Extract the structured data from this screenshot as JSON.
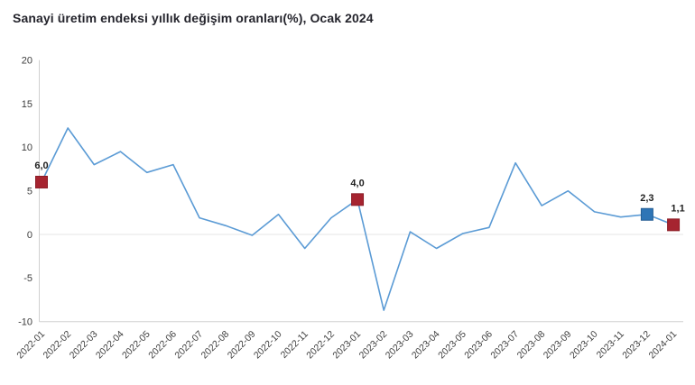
{
  "page": {
    "title": "Sanayi üretim endeksi yıllık değişim oranları(%), Ocak 2024"
  },
  "chart_data": {
    "type": "line",
    "title": "Sanayi üretim endeksi yıllık değişim oranları(%), Ocak 2024",
    "xlabel": "",
    "ylabel": "",
    "x": [
      "2022-01",
      "2022-02",
      "2022-03",
      "2022-04",
      "2022-05",
      "2022-06",
      "2022-07",
      "2022-08",
      "2022-09",
      "2022-10",
      "2022-11",
      "2022-12",
      "2023-01",
      "2023-02",
      "2023-03",
      "2023-04",
      "2023-05",
      "2023-06",
      "2023-07",
      "2023-08",
      "2023-09",
      "2023-10",
      "2023-11",
      "2023-12",
      "2024-01"
    ],
    "values": [
      6.0,
      12.2,
      8.0,
      9.5,
      7.1,
      8.0,
      1.9,
      1.0,
      -0.1,
      2.3,
      -1.6,
      1.9,
      4.0,
      -8.7,
      0.3,
      -1.6,
      0.1,
      0.8,
      8.2,
      3.3,
      5.0,
      2.6,
      2.0,
      2.3,
      1.1
    ],
    "ylim": [
      -10,
      20
    ],
    "yticks": [
      20,
      15,
      10,
      5,
      0,
      -5,
      -10
    ],
    "grid": "horizontal line at 0 only",
    "legend_position": "none",
    "line_color": "#5b9bd5",
    "background_color": "#ffffff",
    "axis_color": "#d0d0d0",
    "zero_gridline_color": "#e4e4e4",
    "tick_label_color": "#3d3d3d",
    "data_label_color": "#1f1f1f",
    "labeled_points": [
      {
        "x": "2022-01",
        "value": 6.0,
        "label": "6,0",
        "marker_color": "#a62430",
        "marker_border": "#8c1d27"
      },
      {
        "x": "2023-01",
        "value": 4.0,
        "label": "4,0",
        "marker_color": "#a62430",
        "marker_border": "#8c1d27"
      },
      {
        "x": "2023-12",
        "value": 2.3,
        "label": "2,3",
        "marker_color": "#2e75b6",
        "marker_border": "#255e94"
      },
      {
        "x": "2024-01",
        "value": 1.1,
        "label": "1,1",
        "marker_color": "#a62430",
        "marker_border": "#8c1d27"
      }
    ]
  }
}
